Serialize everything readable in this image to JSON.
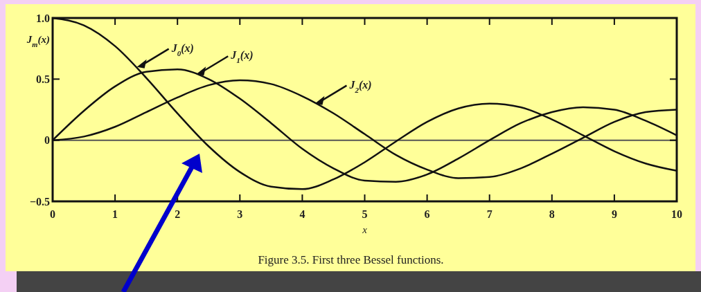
{
  "chart_data": {
    "type": "line",
    "title": "Figure 3.5. First three Bessel functions.",
    "xlabel": "x",
    "ylabel": "J$_{m}$(x)",
    "x": [
      0,
      0.5,
      1,
      1.5,
      2,
      2.5,
      3,
      3.5,
      4,
      4.5,
      5,
      5.5,
      6,
      6.5,
      7,
      7.5,
      8,
      8.5,
      9,
      9.5,
      10
    ],
    "series": [
      {
        "color": "#111111",
        "values": [
          1,
          0.94,
          0.77,
          0.51,
          0.22,
          -0.05,
          -0.26,
          -0.38,
          -0.4,
          -0.32,
          -0.18,
          -0.01,
          0.15,
          0.26,
          0.3,
          0.27,
          0.17,
          0.04,
          -0.09,
          -0.19,
          -0.25
        ]
      },
      {
        "color": "#111111",
        "values": [
          0,
          0.24,
          0.44,
          0.56,
          0.58,
          0.5,
          0.34,
          0.14,
          -0.07,
          -0.23,
          -0.33,
          -0.34,
          -0.28,
          -0.15,
          0,
          0.14,
          0.23,
          0.27,
          0.25,
          0.16,
          0.04
        ]
      },
      {
        "color": "#111111",
        "values": [
          0,
          0.03,
          0.11,
          0.23,
          0.35,
          0.45,
          0.49,
          0.46,
          0.36,
          0.22,
          0.05,
          -0.12,
          -0.24,
          -0.31,
          -0.3,
          -0.23,
          -0.11,
          0.02,
          0.15,
          0.23,
          0.25
        ]
      }
    ],
    "xlim": [
      0,
      10
    ],
    "xticks": [
      0,
      1,
      2,
      3,
      4,
      5,
      6,
      7,
      8,
      9,
      10
    ],
    "ylim": [
      -0.5,
      1
    ],
    "yticks": [
      {
        "value": -0.5,
        "label": "−0.5"
      },
      0,
      0.5,
      {
        "value": 1,
        "label": "1.0"
      }
    ],
    "ref_lines": [
      {
        "axis": "y",
        "value": 0,
        "color": "#555555"
      }
    ],
    "annotations": [
      {
        "text": "J$_{0}$(x)",
        "x": 1.35,
        "y": 0.6
      },
      {
        "text": "J$_{1}$(x)",
        "x": 2.3,
        "y": 0.54
      },
      {
        "text": "J$_{2}$(x)",
        "x": 4.2,
        "y": 0.3
      }
    ],
    "grid": false,
    "marker": "none",
    "line_style": "solid"
  }
}
